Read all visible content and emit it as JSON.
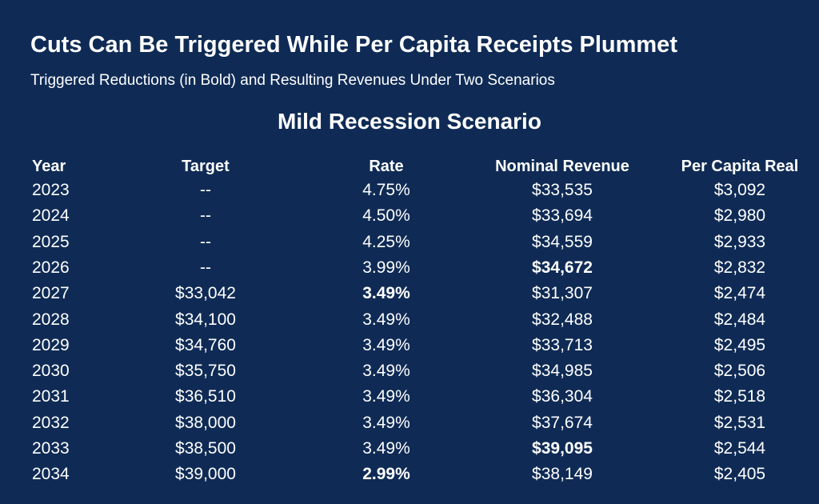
{
  "title": "Cuts Can Be Triggered While Per Capita Receipts Plummet",
  "subtitle": "Triggered Reductions (in Bold) and Resulting Revenues Under Two Scenarios",
  "table": {
    "heading": "Mild Recession Scenario",
    "columns": [
      "Year",
      "Target",
      "Rate",
      "Nominal Revenue",
      "Per Capita Real"
    ],
    "rows": [
      [
        "2023",
        "--",
        "4.75%",
        "$33,535",
        "$3,092"
      ],
      [
        "2024",
        "--",
        "4.50%",
        "$33,694",
        "$2,980"
      ],
      [
        "2025",
        "--",
        "4.25%",
        "$34,559",
        "$2,933"
      ],
      [
        "2026",
        "--",
        "3.99%",
        {
          "text": "$34,672",
          "bold": true
        },
        "$2,832"
      ],
      [
        "2027",
        "$33,042",
        {
          "text": "3.49%",
          "bold": true
        },
        "$31,307",
        "$2,474"
      ],
      [
        "2028",
        "$34,100",
        "3.49%",
        "$32,488",
        "$2,484"
      ],
      [
        "2029",
        "$34,760",
        "3.49%",
        "$33,713",
        "$2,495"
      ],
      [
        "2030",
        "$35,750",
        "3.49%",
        "$34,985",
        "$2,506"
      ],
      [
        "2031",
        "$36,510",
        "3.49%",
        "$36,304",
        "$2,518"
      ],
      [
        "2032",
        "$38,000",
        "3.49%",
        "$37,674",
        "$2,531"
      ],
      [
        "2033",
        "$38,500",
        "3.49%",
        {
          "text": "$39,095",
          "bold": true
        },
        "$2,544"
      ],
      [
        "2034",
        "$39,000",
        {
          "text": "2.99%",
          "bold": true
        },
        "$38,149",
        "$2,405"
      ]
    ]
  }
}
